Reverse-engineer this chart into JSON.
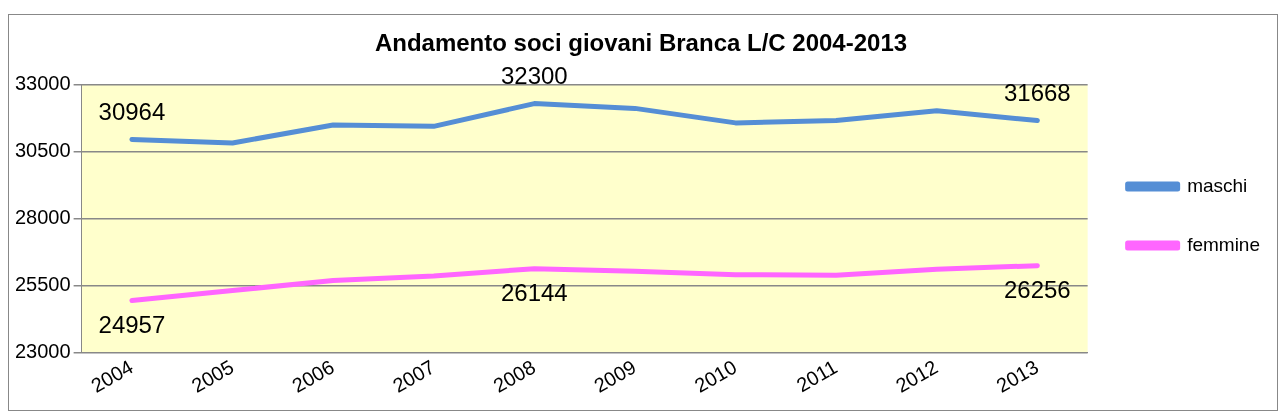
{
  "chart_data": {
    "type": "line",
    "title": "Andamento soci giovani Branca L/C 2004-2013",
    "categories": [
      "2004",
      "2005",
      "2006",
      "2007",
      "2008",
      "2009",
      "2010",
      "2011",
      "2012",
      "2013"
    ],
    "series": [
      {
        "name": "maschi",
        "color": "#558ed5",
        "values": [
          30964,
          30830,
          31500,
          31450,
          32300,
          32120,
          31580,
          31670,
          32030,
          31668
        ],
        "value_labels": [
          "30964",
          null,
          null,
          null,
          "32300",
          null,
          null,
          null,
          null,
          "31668"
        ]
      },
      {
        "name": "femmine",
        "color": "#ff66ff",
        "values": [
          24957,
          25330,
          25700,
          25870,
          26144,
          26050,
          25920,
          25900,
          26120,
          26256
        ],
        "value_labels": [
          "24957",
          null,
          null,
          null,
          "26144",
          null,
          null,
          null,
          null,
          "26256"
        ]
      }
    ],
    "ylim": [
      23000,
      33000
    ],
    "yticks": [
      23000,
      25500,
      28000,
      30500,
      33000
    ],
    "grid": "y",
    "legend": "right",
    "marker": "none",
    "line_style": "solid"
  }
}
